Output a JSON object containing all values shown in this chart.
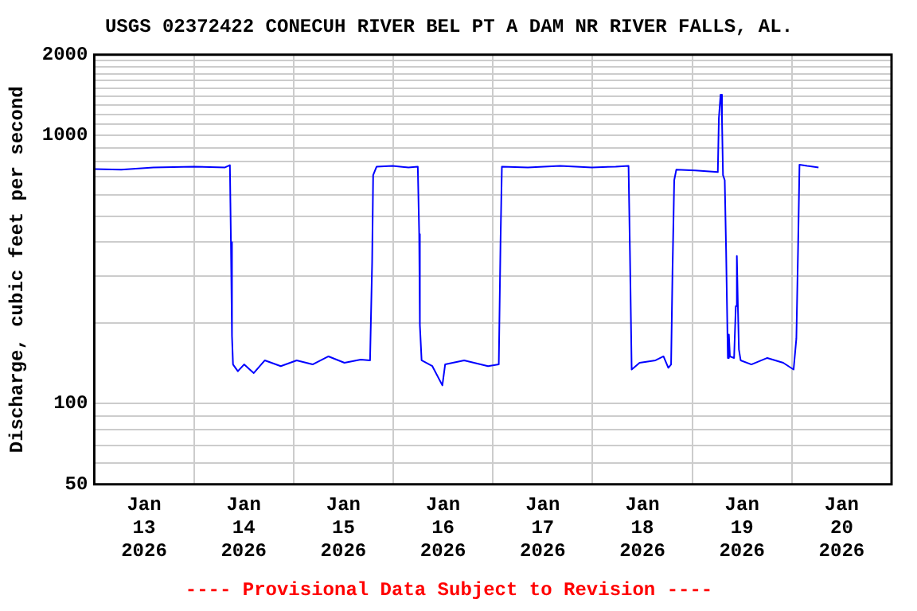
{
  "chart_data": {
    "type": "line",
    "title": "USGS 02372422 CONECUH RIVER BEL PT A DAM NR RIVER FALLS, AL.",
    "ylabel": "Discharge, cubic feet per second",
    "annotations": [
      "---- Provisional Data Subject to Revision ----"
    ],
    "log": true,
    "grid": true,
    "legend": false,
    "marker": "none",
    "line_style": "solid",
    "xlim": [
      "2026-01-13",
      "2026-01-21"
    ],
    "xticks": [
      {
        "value": "2026-01-13",
        "label": null
      },
      {
        "value": "2026-01-13T12:00",
        "label": "Jan\n13\n2026"
      },
      {
        "value": "2026-01-14",
        "label": null
      },
      {
        "value": "2026-01-14T12:00",
        "label": "Jan\n14\n2026"
      },
      {
        "value": "2026-01-15",
        "label": null
      },
      {
        "value": "2026-01-15T12:00",
        "label": "Jan\n15\n2026"
      },
      {
        "value": "2026-01-16",
        "label": null
      },
      {
        "value": "2026-01-16T12:00",
        "label": "Jan\n16\n2026"
      },
      {
        "value": "2026-01-17",
        "label": null
      },
      {
        "value": "2026-01-17T12:00",
        "label": "Jan\n17\n2026"
      },
      {
        "value": "2026-01-18",
        "label": null
      },
      {
        "value": "2026-01-18T12:00",
        "label": "Jan\n18\n2026"
      },
      {
        "value": "2026-01-19",
        "label": null
      },
      {
        "value": "2026-01-19T12:00",
        "label": "Jan\n19\n2026"
      },
      {
        "value": "2026-01-20",
        "label": null
      },
      {
        "value": "2026-01-20T12:00",
        "label": "Jan\n20\n2026"
      },
      {
        "value": "2026-01-21",
        "label": null
      }
    ],
    "ylim": [
      50,
      2000
    ],
    "yticks": [
      50,
      {
        "value": 60,
        "label": null
      },
      {
        "value": 70,
        "label": null
      },
      {
        "value": 80,
        "label": null
      },
      {
        "value": 90,
        "label": null
      },
      100,
      {
        "value": 200,
        "label": null
      },
      {
        "value": 300,
        "label": null
      },
      {
        "value": 400,
        "label": null
      },
      {
        "value": 500,
        "label": null
      },
      {
        "value": 600,
        "label": null
      },
      {
        "value": 700,
        "label": null
      },
      {
        "value": 800,
        "label": null
      },
      {
        "value": 900,
        "label": null
      },
      1000,
      {
        "value": 1100,
        "label": null
      },
      {
        "value": 1200,
        "label": null
      },
      {
        "value": 1300,
        "label": null
      },
      {
        "value": 1400,
        "label": null
      },
      {
        "value": 1500,
        "label": null
      },
      {
        "value": 1600,
        "label": null
      },
      {
        "value": 1700,
        "label": null
      },
      {
        "value": 1800,
        "label": null
      },
      {
        "value": 1900,
        "label": null
      },
      2000
    ],
    "x": [
      "2026-01-13T00:00",
      "2026-01-13T06:30",
      "2026-01-13T14:15",
      "2026-01-14T00:00",
      "2026-01-14T07:30",
      "2026-01-14T08:40",
      "2026-01-14T08:55",
      "2026-01-14T09:10",
      "2026-01-14T09:25",
      "2026-01-14T10:35",
      "2026-01-14T12:05",
      "2026-01-14T14:25",
      "2026-01-14T17:05",
      "2026-01-14T20:55",
      "2026-01-15T00:45",
      "2026-01-15T04:35",
      "2026-01-15T08:25",
      "2026-01-15T12:15",
      "2026-01-15T16:10",
      "2026-01-15T18:25",
      "2026-01-15T18:55",
      "2026-01-15T19:10",
      "2026-01-15T20:00",
      "2026-01-15T23:50",
      "2026-01-16T03:40",
      "2026-01-16T05:55",
      "2026-01-16T06:15",
      "2026-01-16T06:25",
      "2026-01-16T06:50",
      "2026-01-16T09:25",
      "2026-01-16T11:50",
      "2026-01-16T12:30",
      "2026-01-16T17:05",
      "2026-01-16T22:50",
      "2026-01-17T01:25",
      "2026-01-17T01:50",
      "2026-01-17T02:10",
      "2026-01-17T08:25",
      "2026-01-17T16:10",
      "2026-01-17T23:50",
      "2026-01-18T05:35",
      "2026-01-18T08:40",
      "2026-01-18T09:00",
      "2026-01-18T09:25",
      "2026-01-18T11:20",
      "2026-01-18T15:10",
      "2026-01-18T17:05",
      "2026-01-18T18:15",
      "2026-01-18T18:55",
      "2026-01-18T19:15",
      "2026-01-18T19:40",
      "2026-01-18T20:10",
      "2026-01-19T00:45",
      "2026-01-19T06:10",
      "2026-01-19T06:25",
      "2026-01-19T06:50",
      "2026-01-19T07:00",
      "2026-01-19T07:10",
      "2026-01-19T07:25",
      "2026-01-19T07:50",
      "2026-01-19T08:10",
      "2026-01-19T08:35",
      "2026-01-19T08:50",
      "2026-01-19T09:05",
      "2026-01-19T10:05",
      "2026-01-19T10:30",
      "2026-01-19T10:45",
      "2026-01-19T11:00",
      "2026-01-19T11:15",
      "2026-01-19T11:40",
      "2026-01-19T14:15",
      "2026-01-19T18:05",
      "2026-01-19T21:55",
      "2026-01-20T00:25",
      "2026-01-20T01:05",
      "2026-01-20T01:30",
      "2026-01-20T01:50",
      "2026-01-20T03:40",
      "2026-01-20T06:25"
    ],
    "series": [
      {
        "color": "#0000ff",
        "values": [
          750,
          745,
          760,
          765,
          760,
          775,
          400,
          179,
          140,
          132,
          140,
          130,
          145,
          138,
          145,
          140,
          150,
          142,
          146,
          145,
          334,
          711,
          765,
          770,
          760,
          765,
          429,
          196,
          145,
          138,
          117,
          140,
          145,
          138,
          140,
          396,
          765,
          760,
          770,
          760,
          765,
          770,
          372,
          134,
          142,
          145,
          150,
          136,
          140,
          308,
          681,
          745,
          740,
          730,
          1157,
          1420,
          1420,
          1157,
          711,
          681,
          369,
          148,
          181,
          150,
          148,
          231,
          355,
          231,
          159,
          145,
          140,
          148,
          142,
          134,
          175,
          384,
          778,
          770,
          760
        ]
      }
    ]
  }
}
